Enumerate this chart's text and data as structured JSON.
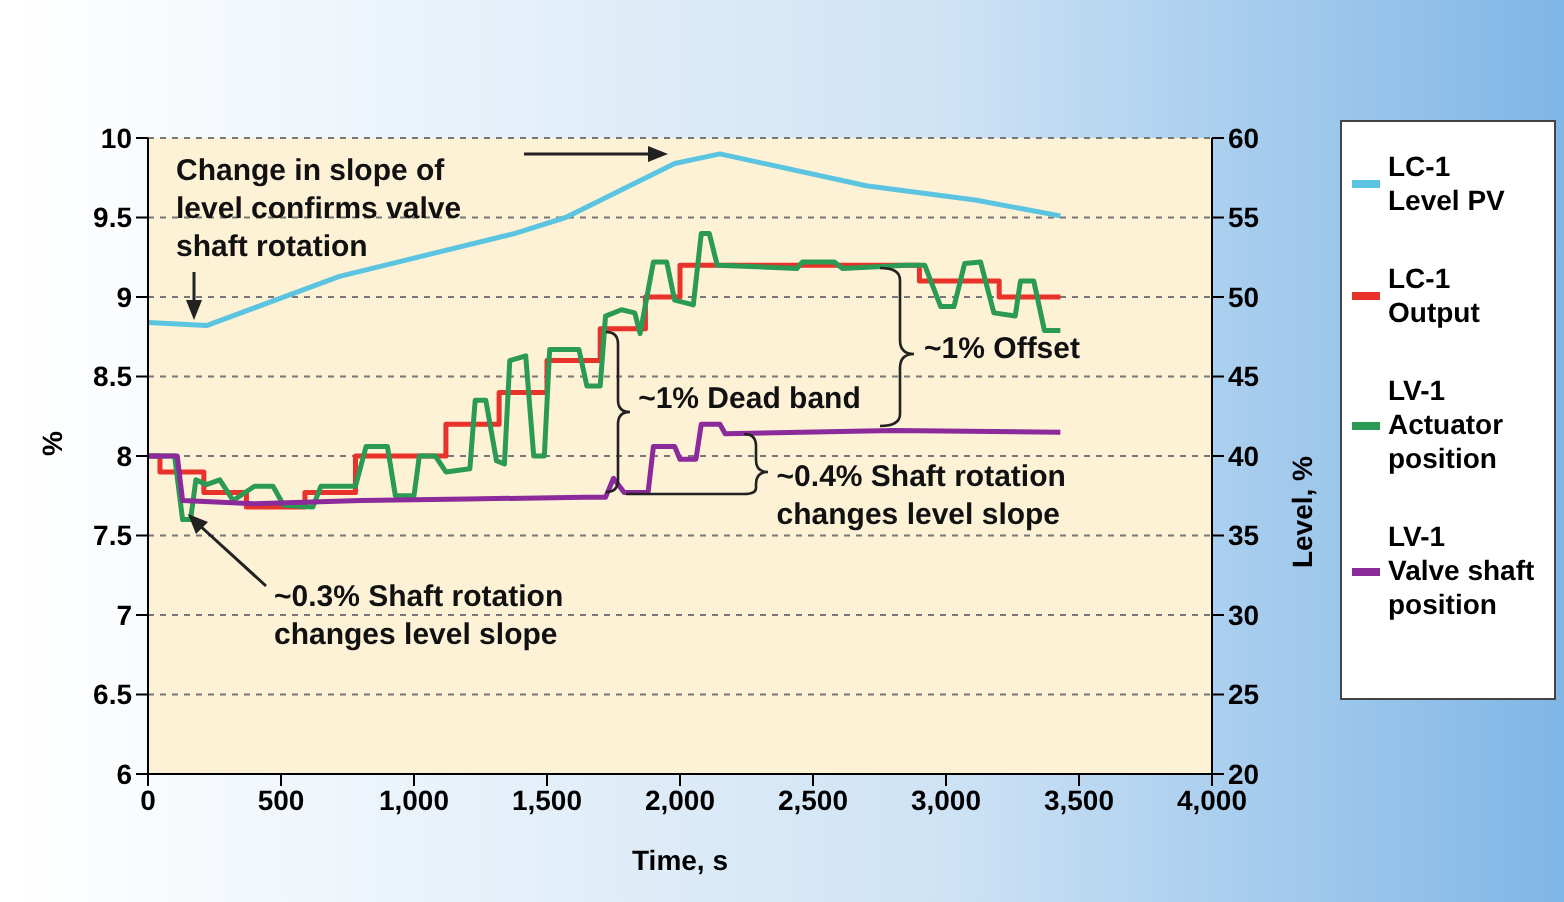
{
  "chart_data": {
    "type": "line",
    "xlabel": "Time, s",
    "ylabel": "%",
    "y2label": "Level, %",
    "xlim": [
      0,
      4000
    ],
    "xticks": [
      0,
      500,
      {
        "value": 1000,
        "label": "1,000"
      },
      {
        "value": 1500,
        "label": "1,500"
      },
      {
        "value": 2000,
        "label": "2,000"
      },
      {
        "value": 2500,
        "label": "2,500"
      },
      {
        "value": 3000,
        "label": "3,000"
      },
      {
        "value": 3500,
        "label": "3,500"
      },
      {
        "value": 4000,
        "label": "4,000"
      }
    ],
    "ylim": [
      6,
      10
    ],
    "yticks": [
      6,
      6.5,
      7,
      7.5,
      8,
      8.5,
      9,
      9.5,
      10
    ],
    "y2lim": [
      20,
      60
    ],
    "y2ticks": [
      20,
      25,
      30,
      35,
      40,
      45,
      50,
      55,
      60
    ],
    "grid": "y",
    "legend": "right",
    "marker": "none",
    "line_style": "solid",
    "series": [
      {
        "name": "LC-1 Level PV",
        "color": "#5bc4e0",
        "axis": "y2",
        "x": [
          0,
          220,
          720,
          1380,
          1570,
          1980,
          2150,
          2700,
          3110,
          3430
        ],
        "values": [
          48.4,
          48.2,
          51.3,
          54.0,
          55.0,
          58.4,
          59.0,
          57.0,
          56.1,
          55.1
        ]
      },
      {
        "name": "LC-1 Output",
        "color": "#e8322a",
        "type": "step",
        "x": [
          0,
          45,
          210,
          370,
          590,
          780,
          1120,
          1320,
          1500,
          1700,
          1870,
          2000,
          2900,
          3200,
          3430
        ],
        "values": [
          8.0,
          7.9,
          7.77,
          7.68,
          7.77,
          8.0,
          8.2,
          8.4,
          8.6,
          8.8,
          9.0,
          9.2,
          9.1,
          9.0,
          9.0
        ]
      },
      {
        "name": "LV-1 Actuator position",
        "color": "#2a9a55",
        "x": [
          0,
          100,
          130,
          160,
          180,
          220,
          270,
          320,
          400,
          470,
          510,
          620,
          650,
          780,
          820,
          900,
          930,
          1000,
          1020,
          1080,
          1120,
          1210,
          1230,
          1270,
          1310,
          1340,
          1360,
          1420,
          1450,
          1490,
          1510,
          1620,
          1650,
          1700,
          1720,
          1780,
          1830,
          1850,
          1900,
          1950,
          1980,
          2050,
          2080,
          2110,
          2140,
          2440,
          2460,
          2580,
          2610,
          2850,
          2920,
          2980,
          3030,
          3070,
          3130,
          3180,
          3260,
          3280,
          3330,
          3370,
          3430
        ],
        "values": [
          8.0,
          8.0,
          7.6,
          7.6,
          7.85,
          7.82,
          7.85,
          7.72,
          7.81,
          7.81,
          7.69,
          7.68,
          7.81,
          7.81,
          8.06,
          8.06,
          7.75,
          7.75,
          8.0,
          8.0,
          7.9,
          7.92,
          8.35,
          8.35,
          7.97,
          7.95,
          8.6,
          8.63,
          8.0,
          8.0,
          8.67,
          8.67,
          8.44,
          8.44,
          8.88,
          8.92,
          8.9,
          8.77,
          9.22,
          9.22,
          8.98,
          8.95,
          9.4,
          9.4,
          9.2,
          9.18,
          9.22,
          9.22,
          9.18,
          9.2,
          9.2,
          8.94,
          8.94,
          9.21,
          9.22,
          8.9,
          8.88,
          9.1,
          9.1,
          8.79,
          8.79
        ]
      },
      {
        "name": "LV-1 Valve shaft position",
        "color": "#8b2a9a",
        "x": [
          0,
          110,
          130,
          400,
          800,
          1200,
          1640,
          1720,
          1750,
          1790,
          1880,
          1900,
          1980,
          2000,
          2060,
          2080,
          2150,
          2170,
          2800,
          3430
        ],
        "values": [
          8.0,
          8.0,
          7.72,
          7.7,
          7.72,
          7.73,
          7.74,
          7.74,
          7.86,
          7.77,
          7.77,
          8.06,
          8.06,
          7.98,
          7.98,
          8.2,
          8.2,
          8.14,
          8.16,
          8.15
        ]
      }
    ],
    "annotations": [
      "Change in slope of level confirms valve shaft rotation",
      {
        "text": "~1% Dead band",
        "x": 1760,
        "y": 8.8
      },
      {
        "text": "~1% Offset",
        "x": 2850,
        "y": 9.2
      },
      {
        "text": "~0.4% Shaft rotation changes level slope",
        "x": 2100,
        "y": 8.2
      },
      "~0.3% Shaft rotation changes level slope"
    ]
  }
}
